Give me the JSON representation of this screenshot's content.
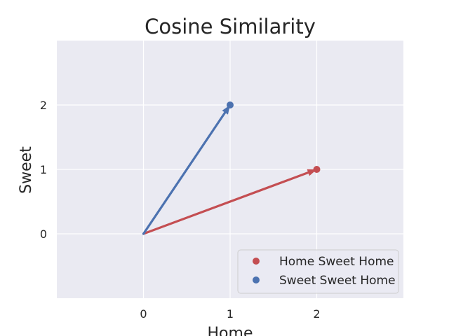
{
  "chart_data": {
    "type": "scatter",
    "title": "Cosine Similarity",
    "xlabel": "Home",
    "ylabel": "Sweet",
    "xlim": [
      -1,
      3
    ],
    "ylim": [
      -1,
      3
    ],
    "xticks": [
      0,
      1,
      2
    ],
    "yticks": [
      0,
      1,
      2
    ],
    "grid": true,
    "background": "#eaeaf2",
    "legend_position": "bottom-right",
    "series": [
      {
        "name": "Home Sweet Home",
        "color": "#c44e52",
        "vector": {
          "origin": [
            0,
            0
          ],
          "tip": [
            2,
            1
          ]
        },
        "points": [
          {
            "x": 2,
            "y": 1
          }
        ]
      },
      {
        "name": "Sweet Sweet Home",
        "color": "#4c72b0",
        "vector": {
          "origin": [
            0,
            0
          ],
          "tip": [
            1,
            2
          ]
        },
        "points": [
          {
            "x": 1,
            "y": 2
          }
        ]
      }
    ]
  }
}
